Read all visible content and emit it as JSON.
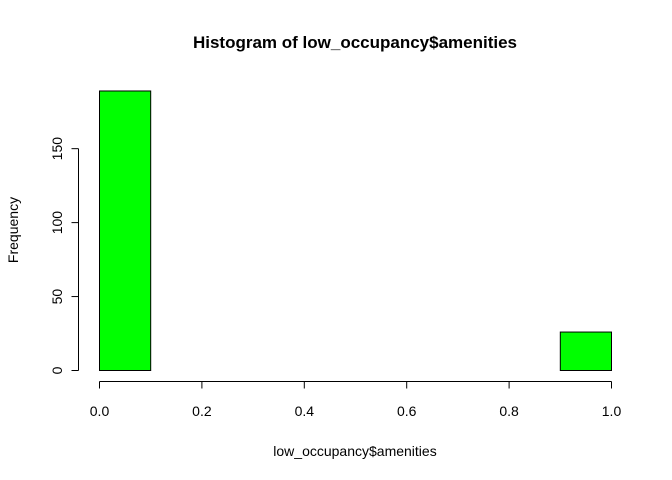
{
  "chart_data": {
    "type": "bar",
    "title": "Histogram of low_occupancy$amenities",
    "xlabel": "low_occupancy$amenities",
    "ylabel": "Frequency",
    "bins": [
      {
        "from": 0.0,
        "to": 0.1,
        "count": 189
      },
      {
        "from": 0.1,
        "to": 0.2,
        "count": 0
      },
      {
        "from": 0.2,
        "to": 0.3,
        "count": 0
      },
      {
        "from": 0.3,
        "to": 0.4,
        "count": 0
      },
      {
        "from": 0.4,
        "to": 0.5,
        "count": 0
      },
      {
        "from": 0.5,
        "to": 0.6,
        "count": 0
      },
      {
        "from": 0.6,
        "to": 0.7,
        "count": 0
      },
      {
        "from": 0.7,
        "to": 0.8,
        "count": 0
      },
      {
        "from": 0.8,
        "to": 0.9,
        "count": 0
      },
      {
        "from": 0.9,
        "to": 1.0,
        "count": 26
      }
    ],
    "xlim": [
      0,
      1
    ],
    "ylim": [
      0,
      190
    ],
    "x_ticks": [
      0.0,
      0.2,
      0.4,
      0.6,
      0.8,
      1.0
    ],
    "x_tick_labels": [
      "0.0",
      "0.2",
      "0.4",
      "0.6",
      "0.8",
      "1.0"
    ],
    "y_ticks": [
      0,
      50,
      100,
      150
    ],
    "y_tick_labels": [
      "0",
      "50",
      "100",
      "150"
    ],
    "bar_color": "#00ff00",
    "grid": false,
    "legend": "none"
  }
}
